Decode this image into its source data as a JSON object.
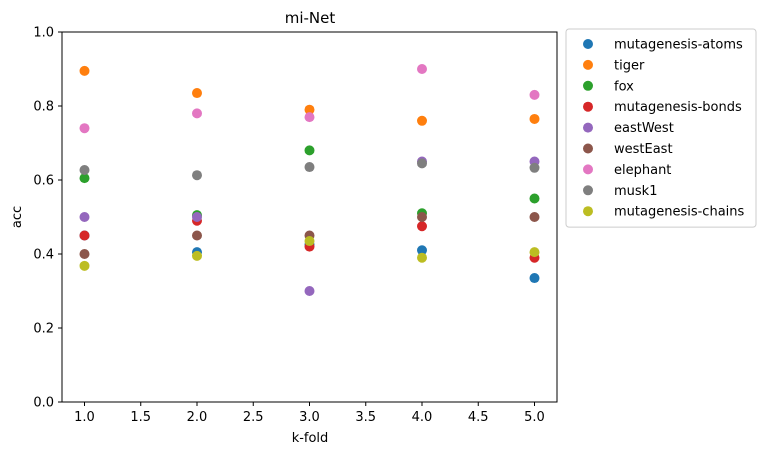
{
  "chart_data": {
    "type": "scatter",
    "title": "mi-Net",
    "xlabel": "k-fold",
    "ylabel": "acc",
    "xlim": [
      0.8,
      5.2
    ],
    "ylim": [
      0.0,
      1.0
    ],
    "xticks": [
      1.0,
      1.5,
      2.0,
      2.5,
      3.0,
      3.5,
      4.0,
      4.5,
      5.0
    ],
    "xtick_labels": [
      "1.0",
      "1.5",
      "2.0",
      "2.5",
      "3.0",
      "3.5",
      "4.0",
      "4.5",
      "5.0"
    ],
    "yticks": [
      0.0,
      0.2,
      0.4,
      0.6,
      0.8,
      1.0
    ],
    "ytick_labels": [
      "0.0",
      "0.2",
      "0.4",
      "0.6",
      "0.8",
      "1.0"
    ],
    "grid": false,
    "legend_position": "outside-right",
    "x": [
      1,
      2,
      3,
      4,
      5
    ],
    "series": [
      {
        "name": "mutagenesis-atoms",
        "color": "#1f77b4",
        "values": [
          0.45,
          0.405,
          0.425,
          0.41,
          0.335
        ]
      },
      {
        "name": "tiger",
        "color": "#ff7f0e",
        "values": [
          0.895,
          0.835,
          0.79,
          0.76,
          0.765
        ]
      },
      {
        "name": "fox",
        "color": "#2ca02c",
        "values": [
          0.605,
          0.505,
          0.68,
          0.51,
          0.55
        ]
      },
      {
        "name": "mutagenesis-bonds",
        "color": "#d62728",
        "values": [
          0.45,
          0.49,
          0.42,
          0.475,
          0.39
        ]
      },
      {
        "name": "eastWest",
        "color": "#9467bd",
        "values": [
          0.5,
          0.5,
          0.3,
          0.65,
          0.65
        ]
      },
      {
        "name": "westEast",
        "color": "#8c564b",
        "values": [
          0.4,
          0.45,
          0.45,
          0.5,
          0.5
        ]
      },
      {
        "name": "elephant",
        "color": "#e377c2",
        "values": [
          0.74,
          0.78,
          0.77,
          0.9,
          0.83
        ]
      },
      {
        "name": "musk1",
        "color": "#7f7f7f",
        "values": [
          0.627,
          0.613,
          0.635,
          0.645,
          0.633
        ]
      },
      {
        "name": "mutagenesis-chains",
        "color": "#bcbd22",
        "values": [
          0.368,
          0.395,
          0.435,
          0.39,
          0.405
        ]
      }
    ]
  }
}
